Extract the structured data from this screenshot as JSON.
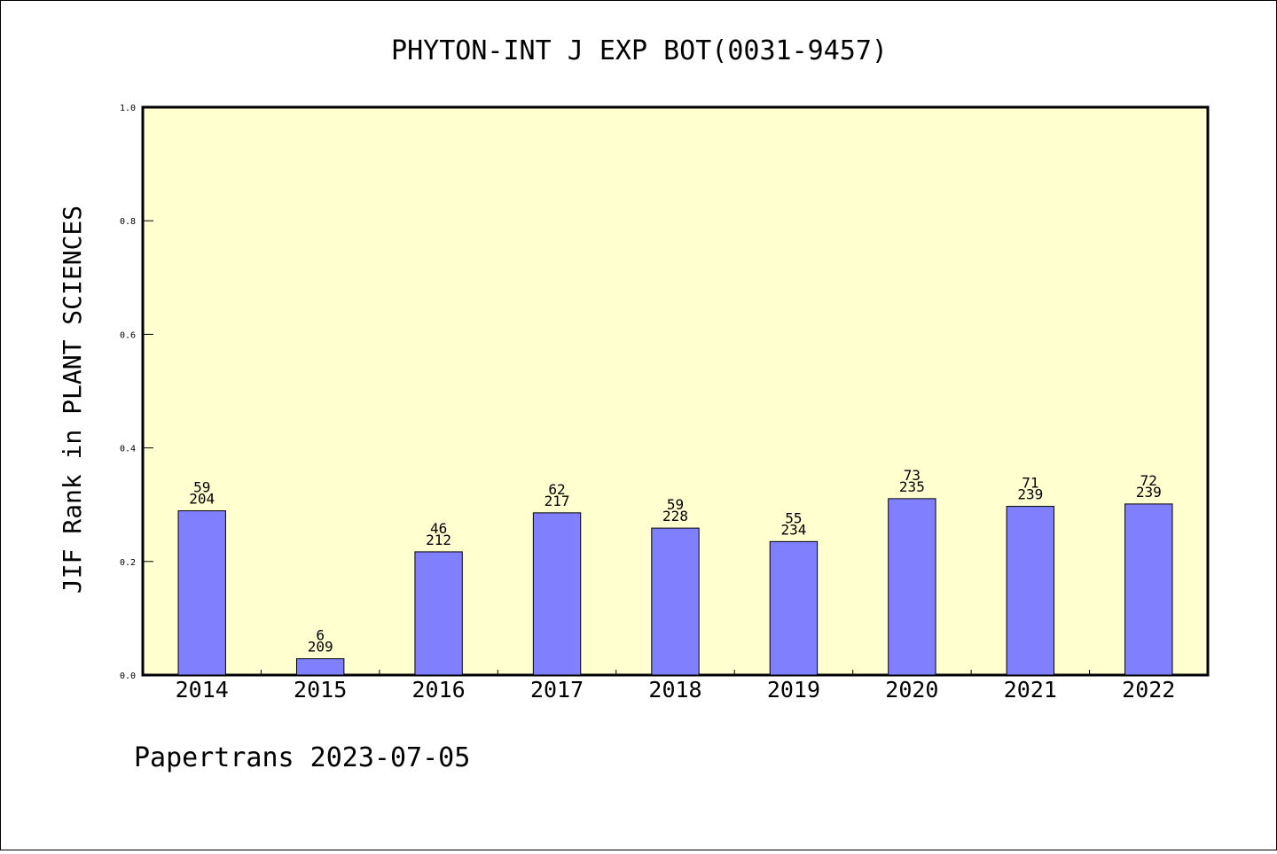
{
  "chart_data": {
    "type": "bar",
    "title": "PHYTON-INT J EXP BOT(0031-9457)",
    "xlabel": "",
    "ylabel": "JIF Rank in PLANT SCIENCES",
    "ylim": [
      0,
      1.0
    ],
    "yticks": [
      "0.0",
      "0.2",
      "0.4",
      "0.6",
      "0.8",
      "1.0"
    ],
    "categories": [
      "2014",
      "2015",
      "2016",
      "2017",
      "2018",
      "2019",
      "2020",
      "2021",
      "2022"
    ],
    "values": [
      0.2892,
      0.0287,
      0.217,
      0.2857,
      0.2588,
      0.235,
      0.3106,
      0.2971,
      0.3013
    ],
    "bar_top_labels": [
      "59",
      "6",
      "46",
      "62",
      "59",
      "55",
      "73",
      "71",
      "72"
    ],
    "bar_bottom_labels": [
      "204",
      "209",
      "212",
      "217",
      "228",
      "234",
      "235",
      "239",
      "239"
    ],
    "grid": false,
    "colors": {
      "plot_background": "#ffffd0",
      "bar": "#8080ff"
    }
  },
  "footer": "Papertrans 2023-07-05"
}
